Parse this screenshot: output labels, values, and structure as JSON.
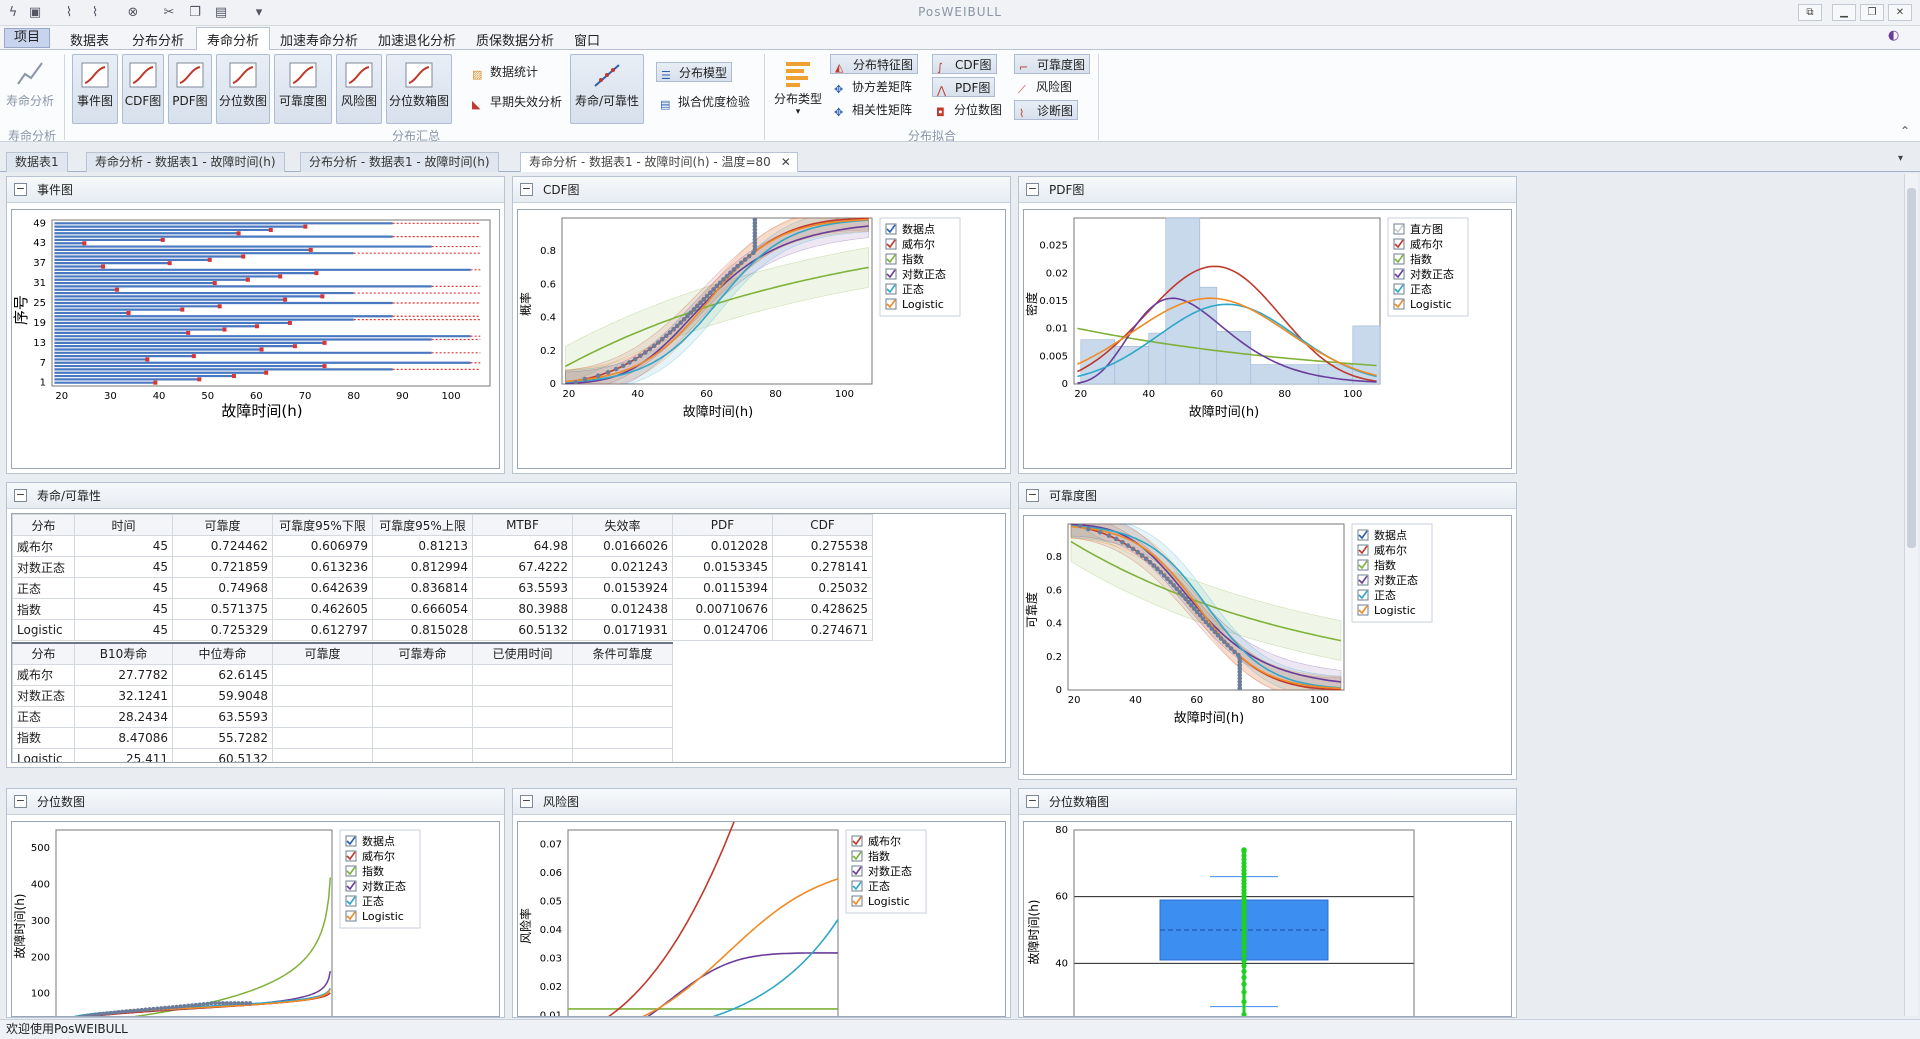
{
  "app": {
    "title": "PosWEIBULL"
  },
  "menu": {
    "items": [
      "项目",
      "数据表",
      "分布分析",
      "寿命分析",
      "加速寿命分析",
      "加速退化分析",
      "质保数据分析",
      "窗口"
    ]
  },
  "ribbon": {
    "life_analysis": "寿命分析",
    "summary_buttons": [
      "事件图",
      "CDF图",
      "PDF图",
      "分位数图",
      "可靠度图",
      "风险图",
      "分位数箱图"
    ],
    "data_stats": "数据统计",
    "early_failure": "早期失效分析",
    "life_reliability": "寿命/可靠性",
    "dist_model": "分布模型",
    "goodness": "拟合优度检验",
    "dist_type": "分布类型",
    "dist_feature": "分布特征图",
    "cov_matrix": "协方差矩阵",
    "corr_matrix": "相关性矩阵",
    "cdf": "CDF图",
    "pdf": "PDF图",
    "quantile": "分位数图",
    "reliability": "可靠度图",
    "hazard": "风险图",
    "diagnostic": "诊断图",
    "group_life": "寿命分析",
    "group_summary": "分布汇总",
    "group_fit": "分布拟合"
  },
  "doc_tabs": [
    "数据表1",
    "寿命分析 - 数据表1 - 故障时间(h)",
    "分布分析 - 数据表1 - 故障时间(h)",
    "寿命分析 - 数据表1 - 故障时间(h) - 温度=80"
  ],
  "panels": {
    "event": "事件图",
    "cdf": "CDF图",
    "pdf": "PDF图",
    "life": "寿命/可靠性",
    "reliability": "可靠度图",
    "quantile": "分位数图",
    "hazard": "风险图",
    "boxplot": "分位数箱图"
  },
  "legend": {
    "points": "数据点",
    "hist": "直方图",
    "weibull": "威布尔",
    "exp": "指数",
    "lognormal": "对数正态",
    "normal": "正态",
    "logistic": "Logistic"
  },
  "colors": {
    "weibull": "#c0392b",
    "exp": "#7fb23a",
    "lognormal": "#6a3d9a",
    "normal": "#2fa7c9",
    "logistic": "#f08a24",
    "bar": "#4a78c0",
    "box": "#3c8ef0",
    "green": "#1fd11f",
    "hist": "#c9d9ec"
  },
  "axes": {
    "x_time": "故障时间(h)",
    "y_seq": "序号",
    "y_prob": "概率",
    "y_density": "密度",
    "y_rel": "可靠度",
    "y_quant": "故障时间(h)",
    "y_hazard": "风险率",
    "y_box": "故障时间(h)"
  },
  "life_table": {
    "headers": [
      "分布",
      "时间",
      "可靠度",
      "可靠度95%下限",
      "可靠度95%上限",
      "MTBF",
      "失效率",
      "PDF",
      "CDF"
    ],
    "rows": [
      [
        "威布尔",
        "45",
        "0.724462",
        "0.606979",
        "0.81213",
        "64.98",
        "0.0166026",
        "0.012028",
        "0.275538"
      ],
      [
        "对数正态",
        "45",
        "0.721859",
        "0.613236",
        "0.812994",
        "67.4222",
        "0.021243",
        "0.0153345",
        "0.278141"
      ],
      [
        "正态",
        "45",
        "0.74968",
        "0.642639",
        "0.836814",
        "63.5593",
        "0.0153924",
        "0.0115394",
        "0.25032"
      ],
      [
        "指数",
        "45",
        "0.571375",
        "0.462605",
        "0.666054",
        "80.3988",
        "0.012438",
        "0.00710676",
        "0.428625"
      ],
      [
        "Logistic",
        "45",
        "0.725329",
        "0.612797",
        "0.815028",
        "60.5132",
        "0.0171931",
        "0.0124706",
        "0.274671"
      ]
    ]
  },
  "life_table2": {
    "headers": [
      "分布",
      "B10寿命",
      "中位寿命",
      "可靠度",
      "可靠寿命",
      "已使用时间",
      "条件可靠度"
    ],
    "rows": [
      [
        "威布尔",
        "27.7782",
        "62.6145",
        "",
        "",
        "",
        ""
      ],
      [
        "对数正态",
        "32.1241",
        "59.9048",
        "",
        "",
        "",
        ""
      ],
      [
        "正态",
        "28.2434",
        "63.5593",
        "",
        "",
        "",
        ""
      ],
      [
        "指数",
        "8.47086",
        "55.7282",
        "",
        "",
        "",
        ""
      ],
      [
        "Logistic",
        "25.411",
        "60.5132",
        "",
        "",
        "",
        ""
      ]
    ]
  },
  "chart_data": [
    {
      "type": "bar",
      "name": "事件图",
      "xlabel": "故障时间(h)",
      "ylabel": "序号",
      "xlim": [
        18,
        108
      ],
      "ylim": [
        0,
        50
      ],
      "xticks": [
        20,
        30,
        40,
        50,
        60,
        70,
        80,
        90,
        100
      ],
      "yticks": [
        1,
        7,
        13,
        19,
        25,
        31,
        37,
        43,
        49
      ]
    },
    {
      "type": "line",
      "name": "CDF图",
      "xlabel": "故障时间(h)",
      "ylabel": "概率",
      "xlim": [
        18,
        108
      ],
      "ylim": [
        0,
        1
      ],
      "xticks": [
        20,
        40,
        60,
        80,
        100
      ],
      "yticks": [
        0,
        0.2,
        0.4,
        0.6,
        0.8
      ]
    },
    {
      "type": "line",
      "name": "PDF图",
      "xlabel": "故障时间(h)",
      "ylabel": "密度",
      "xlim": [
        18,
        108
      ],
      "ylim": [
        0,
        0.03
      ],
      "xticks": [
        20,
        40,
        60,
        80,
        100
      ],
      "yticks": [
        0,
        0.005,
        0.01,
        0.015,
        0.02,
        0.025
      ]
    },
    {
      "type": "line",
      "name": "可靠度图",
      "xlabel": "故障时间(h)",
      "ylabel": "可靠度",
      "xlim": [
        18,
        108
      ],
      "ylim": [
        0,
        1
      ],
      "xticks": [
        20,
        40,
        60,
        80,
        100
      ],
      "yticks": [
        0,
        0.2,
        0.4,
        0.6,
        0.8
      ]
    },
    {
      "type": "line",
      "name": "分位数图",
      "ylabel": "故障时间(h)",
      "ylim": [
        0,
        550
      ],
      "yticks": [
        100,
        200,
        300,
        400,
        500
      ]
    },
    {
      "type": "line",
      "name": "风险图",
      "ylabel": "风险率",
      "ylim": [
        0.005,
        0.075
      ],
      "yticks": [
        0.01,
        0.02,
        0.03,
        0.04,
        0.05,
        0.06,
        0.07
      ]
    },
    {
      "type": "bar",
      "name": "分位数箱图",
      "ylabel": "故障时间(h)",
      "ylim": [
        20,
        80
      ],
      "yticks": [
        20,
        40,
        60,
        80
      ],
      "q1": 41,
      "median": 50,
      "q3": 59,
      "whisker_low": 27,
      "whisker_high": 66
    }
  ],
  "status": "欢迎使用PosWEIBULL"
}
